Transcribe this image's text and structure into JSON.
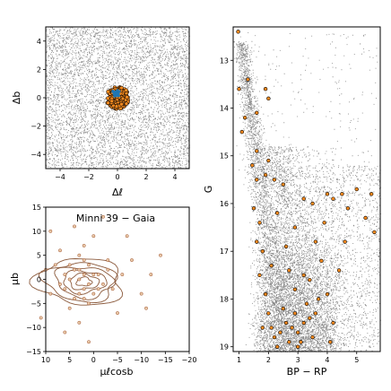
{
  "chart_data": [
    {
      "type": "scatter",
      "panel": "top-left",
      "xlabel": "Δℓ",
      "ylabel": "Δb",
      "xlim": [
        -5,
        5
      ],
      "ylim": [
        -5,
        5
      ],
      "x_ticks": [
        "−4",
        "−2",
        "0",
        "2",
        "4"
      ],
      "y_ticks": [
        "4",
        "2",
        "0",
        "−2",
        "−4"
      ],
      "series": [
        {
          "role": "field stars",
          "color": "#888888",
          "density": "uniform over full field"
        },
        {
          "role": "cluster members",
          "color": "#f58a1f",
          "edge": "#000000",
          "center": [
            0,
            0
          ],
          "radius": 0.8
        },
        {
          "role": "cluster core",
          "color": "#1f77b4",
          "center": [
            -0.1,
            0.3
          ],
          "radius": 0.3
        }
      ],
      "grid": false
    },
    {
      "type": "scatter",
      "panel": "bottom-left",
      "title": "Minni 39  −  Gaia",
      "xlabel": "μℓcosb",
      "ylabel": "μb",
      "xlim": [
        10,
        -20
      ],
      "ylim": [
        -15,
        15
      ],
      "x_ticks": [
        "10",
        "5",
        "0",
        "−5",
        "−10",
        "−15",
        "−20"
      ],
      "y_ticks": [
        "15",
        "10",
        "5",
        "0",
        "−5",
        "−10",
        "−15"
      ],
      "x_tick_values": [
        10,
        5,
        0,
        -5,
        -10,
        -15,
        -20
      ],
      "y_tick_values": [
        15,
        10,
        5,
        0,
        -5,
        -10,
        -15
      ],
      "points": [
        [
          2,
          1
        ],
        [
          1,
          -1
        ],
        [
          3,
          0
        ],
        [
          4,
          2
        ],
        [
          0,
          1
        ],
        [
          2,
          -2
        ],
        [
          5,
          0
        ],
        [
          1,
          3
        ],
        [
          -1,
          1
        ],
        [
          3,
          -3
        ],
        [
          6,
          1
        ],
        [
          2,
          4
        ],
        [
          -2,
          -1
        ],
        [
          4,
          -4
        ],
        [
          0,
          -3
        ],
        [
          7,
          -1
        ],
        [
          3,
          5
        ],
        [
          -3,
          2
        ],
        [
          1,
          -5
        ],
        [
          8,
          3
        ],
        [
          -4,
          -2
        ],
        [
          5,
          -6
        ],
        [
          2,
          7
        ],
        [
          -6,
          1
        ],
        [
          9,
          -3
        ],
        [
          0,
          9
        ],
        [
          -8,
          4
        ],
        [
          3,
          -9
        ],
        [
          7,
          6
        ],
        [
          -5,
          -7
        ],
        [
          10,
          2
        ],
        [
          -10,
          -3
        ],
        [
          4,
          11
        ],
        [
          -12,
          1
        ],
        [
          6,
          -11
        ],
        [
          -2,
          13
        ],
        [
          -14,
          5
        ],
        [
          11,
          -8
        ],
        [
          -7,
          9
        ],
        [
          1,
          -13
        ],
        [
          9,
          10
        ],
        [
          -11,
          -6
        ],
        [
          3,
          2
        ],
        [
          -1,
          -2
        ],
        [
          5,
          3
        ],
        [
          2,
          -4
        ],
        [
          -3,
          4
        ],
        [
          6,
          -2
        ]
      ],
      "point_color": "#e8c9a8",
      "point_edge": "#a0522d",
      "contours": {
        "color": "#8b5a3c",
        "center": [
          2,
          -0.5
        ],
        "levels": 6
      },
      "grid": false
    },
    {
      "type": "scatter",
      "panel": "right",
      "xlabel": "BP − RP",
      "ylabel": "G",
      "xlim": [
        0.8,
        5.8
      ],
      "ylim": [
        19.1,
        12.3
      ],
      "x_ticks": [
        "1",
        "2",
        "3",
        "4",
        "5"
      ],
      "y_ticks": [
        "13",
        "14",
        "15",
        "16",
        "17",
        "18",
        "19"
      ],
      "x_tick_values": [
        1,
        2,
        3,
        4,
        5
      ],
      "y_tick_values": [
        13,
        14,
        15,
        16,
        17,
        18,
        19
      ],
      "series": [
        {
          "role": "field stars",
          "color": "#888888"
        },
        {
          "role": "members",
          "color": "#f58a1f",
          "edge": "#000000"
        }
      ],
      "members": [
        [
          0.97,
          12.4
        ],
        [
          1.0,
          13.6
        ],
        [
          1.2,
          14.2
        ],
        [
          1.1,
          14.5
        ],
        [
          1.6,
          14.1
        ],
        [
          2.0,
          13.8
        ],
        [
          1.9,
          13.6
        ],
        [
          1.6,
          14.9
        ],
        [
          2.0,
          15.1
        ],
        [
          1.9,
          15.4
        ],
        [
          2.2,
          15.5
        ],
        [
          2.5,
          15.6
        ],
        [
          1.6,
          15.5
        ],
        [
          1.5,
          16.1
        ],
        [
          1.7,
          16.4
        ],
        [
          1.6,
          16.8
        ],
        [
          1.8,
          17.0
        ],
        [
          1.7,
          17.5
        ],
        [
          1.9,
          17.9
        ],
        [
          2.0,
          18.3
        ],
        [
          2.1,
          18.6
        ],
        [
          2.2,
          18.8
        ],
        [
          2.3,
          19.0
        ],
        [
          2.4,
          18.7
        ],
        [
          2.5,
          18.2
        ],
        [
          2.6,
          18.5
        ],
        [
          2.7,
          18.9
        ],
        [
          2.8,
          18.6
        ],
        [
          2.9,
          18.3
        ],
        [
          3.0,
          18.7
        ],
        [
          3.1,
          18.9
        ],
        [
          3.2,
          18.5
        ],
        [
          3.3,
          18.1
        ],
        [
          3.4,
          18.4
        ],
        [
          3.5,
          18.8
        ],
        [
          3.6,
          18.3
        ],
        [
          3.7,
          18.0
        ],
        [
          3.4,
          17.6
        ],
        [
          3.8,
          17.2
        ],
        [
          3.6,
          16.8
        ],
        [
          3.9,
          16.4
        ],
        [
          4.0,
          15.8
        ],
        [
          4.2,
          15.9
        ],
        [
          4.5,
          15.8
        ],
        [
          4.7,
          16.1
        ],
        [
          5.0,
          15.7
        ],
        [
          5.3,
          16.3
        ],
        [
          5.5,
          15.8
        ],
        [
          5.6,
          16.6
        ],
        [
          4.6,
          16.8
        ],
        [
          4.4,
          17.4
        ],
        [
          4.0,
          17.9
        ],
        [
          4.2,
          18.5
        ],
        [
          2.3,
          16.2
        ],
        [
          2.6,
          16.9
        ],
        [
          2.1,
          17.3
        ],
        [
          2.9,
          17.8
        ],
        [
          3.2,
          17.5
        ],
        [
          3.5,
          16.0
        ],
        [
          3.2,
          15.9
        ],
        [
          1.45,
          15.2
        ],
        [
          1.3,
          13.4
        ],
        [
          2.9,
          16.5
        ],
        [
          1.8,
          18.6
        ],
        [
          4.1,
          18.9
        ],
        [
          3.0,
          19.0
        ],
        [
          2.7,
          17.4
        ]
      ],
      "grid": false
    }
  ]
}
